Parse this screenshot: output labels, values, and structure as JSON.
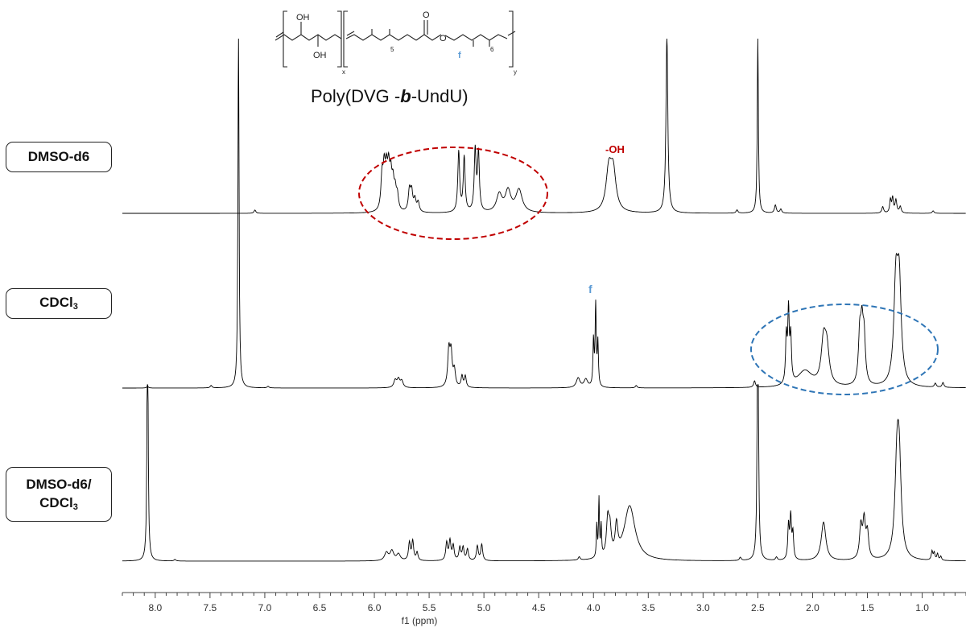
{
  "chart_data": {
    "type": "line",
    "xlabel": "f1 (ppm)",
    "xlim": [
      8.3,
      0.6
    ],
    "x_reversed": true,
    "xticks": [
      "8.0",
      "7.5",
      "7.0",
      "6.5",
      "6.0",
      "5.5",
      "5.0",
      "4.5",
      "4.0",
      "3.5",
      "3.0",
      "2.5",
      "2.0",
      "1.5",
      "1.0"
    ],
    "xtick_values": [
      8.0,
      7.5,
      7.0,
      6.5,
      6.0,
      5.5,
      5.0,
      4.5,
      4.0,
      3.5,
      3.0,
      2.5,
      2.0,
      1.5,
      1.0
    ],
    "colors": {
      "trace": "#000000",
      "red_ellipse": "#c00000",
      "blue_ellipse": "#2e75b6",
      "f_label": "#5b9bd5"
    },
    "series": [
      {
        "solvent": "DMSO-d6",
        "peaks": [
          {
            "ppm": 7.09,
            "h": 4,
            "w": 0.01
          },
          {
            "ppm": 5.93,
            "h": 40,
            "w": 0.012
          },
          {
            "ppm": 5.91,
            "h": 46,
            "w": 0.012
          },
          {
            "ppm": 5.89,
            "h": 42,
            "w": 0.012
          },
          {
            "ppm": 5.87,
            "h": 45,
            "w": 0.012
          },
          {
            "ppm": 5.85,
            "h": 38,
            "w": 0.012
          },
          {
            "ppm": 5.83,
            "h": 30,
            "w": 0.012
          },
          {
            "ppm": 5.81,
            "h": 22,
            "w": 0.012
          },
          {
            "ppm": 5.79,
            "h": 18,
            "w": 0.012
          },
          {
            "ppm": 5.68,
            "h": 26,
            "w": 0.012
          },
          {
            "ppm": 5.66,
            "h": 24,
            "w": 0.012
          },
          {
            "ppm": 5.63,
            "h": 15,
            "w": 0.012
          },
          {
            "ppm": 5.6,
            "h": 12,
            "w": 0.012
          },
          {
            "ppm": 5.23,
            "h": 75,
            "w": 0.01
          },
          {
            "ppm": 5.18,
            "h": 68,
            "w": 0.01
          },
          {
            "ppm": 5.08,
            "h": 76,
            "w": 0.01
          },
          {
            "ppm": 5.05,
            "h": 72,
            "w": 0.01
          },
          {
            "ppm": 4.86,
            "h": 22,
            "w": 0.03
          },
          {
            "ppm": 4.78,
            "h": 26,
            "w": 0.03
          },
          {
            "ppm": 4.68,
            "h": 28,
            "w": 0.035
          },
          {
            "ppm": 3.86,
            "h": 50,
            "w": 0.03
          },
          {
            "ppm": 3.82,
            "h": 48,
            "w": 0.03
          },
          {
            "ppm": 3.33,
            "h": 220,
            "w": 0.01
          },
          {
            "ppm": 2.69,
            "h": 4,
            "w": 0.01
          },
          {
            "ppm": 2.5,
            "h": 220,
            "w": 0.006
          },
          {
            "ppm": 2.34,
            "h": 10,
            "w": 0.01
          },
          {
            "ppm": 2.29,
            "h": 5,
            "w": 0.01
          },
          {
            "ppm": 1.36,
            "h": 8,
            "w": 0.01
          },
          {
            "ppm": 1.29,
            "h": 16,
            "w": 0.008
          },
          {
            "ppm": 1.27,
            "h": 18,
            "w": 0.008
          },
          {
            "ppm": 1.24,
            "h": 16,
            "w": 0.01
          },
          {
            "ppm": 1.2,
            "h": 8,
            "w": 0.01
          },
          {
            "ppm": 0.9,
            "h": 3,
            "w": 0.01
          }
        ]
      },
      {
        "solvent": "CDCl3",
        "peaks": [
          {
            "ppm": 8.07,
            "h": 2,
            "w": 0.01
          },
          {
            "ppm": 7.49,
            "h": 3,
            "w": 0.01
          },
          {
            "ppm": 7.24,
            "h": 435,
            "w": 0.006
          },
          {
            "ppm": 6.97,
            "h": 2,
            "w": 0.01
          },
          {
            "ppm": 5.81,
            "h": 9,
            "w": 0.015
          },
          {
            "ppm": 5.78,
            "h": 10,
            "w": 0.015
          },
          {
            "ppm": 5.75,
            "h": 8,
            "w": 0.015
          },
          {
            "ppm": 5.32,
            "h": 44,
            "w": 0.012
          },
          {
            "ppm": 5.3,
            "h": 40,
            "w": 0.012
          },
          {
            "ppm": 5.27,
            "h": 20,
            "w": 0.012
          },
          {
            "ppm": 5.2,
            "h": 14,
            "w": 0.01
          },
          {
            "ppm": 5.17,
            "h": 14,
            "w": 0.01
          },
          {
            "ppm": 4.14,
            "h": 12,
            "w": 0.02
          },
          {
            "ppm": 4.07,
            "h": 10,
            "w": 0.02
          },
          {
            "ppm": 4.0,
            "h": 56,
            "w": 0.006
          },
          {
            "ppm": 3.98,
            "h": 100,
            "w": 0.006
          },
          {
            "ppm": 3.96,
            "h": 54,
            "w": 0.006
          },
          {
            "ppm": 3.61,
            "h": 3,
            "w": 0.01
          },
          {
            "ppm": 2.53,
            "h": 8,
            "w": 0.01
          },
          {
            "ppm": 2.24,
            "h": 58,
            "w": 0.008
          },
          {
            "ppm": 2.22,
            "h": 88,
            "w": 0.008
          },
          {
            "ppm": 2.2,
            "h": 56,
            "w": 0.008
          },
          {
            "ppm": 2.07,
            "h": 20,
            "w": 0.08
          },
          {
            "ppm": 1.9,
            "h": 52,
            "w": 0.025
          },
          {
            "ppm": 1.87,
            "h": 42,
            "w": 0.025
          },
          {
            "ppm": 1.57,
            "h": 58,
            "w": 0.014
          },
          {
            "ppm": 1.55,
            "h": 64,
            "w": 0.014
          },
          {
            "ppm": 1.53,
            "h": 54,
            "w": 0.014
          },
          {
            "ppm": 1.24,
            "h": 120,
            "w": 0.022
          },
          {
            "ppm": 1.21,
            "h": 120,
            "w": 0.022
          },
          {
            "ppm": 0.88,
            "h": 5,
            "w": 0.01
          },
          {
            "ppm": 0.81,
            "h": 6,
            "w": 0.01
          }
        ]
      },
      {
        "solvent": "DMSO-d6/CDCl3",
        "peaks": [
          {
            "ppm": 8.07,
            "h": 332,
            "w": 0.006
          },
          {
            "ppm": 7.82,
            "h": 2,
            "w": 0.01
          },
          {
            "ppm": 5.89,
            "h": 10,
            "w": 0.02
          },
          {
            "ppm": 5.84,
            "h": 12,
            "w": 0.02
          },
          {
            "ppm": 5.78,
            "h": 8,
            "w": 0.02
          },
          {
            "ppm": 5.68,
            "h": 22,
            "w": 0.01
          },
          {
            "ppm": 5.65,
            "h": 24,
            "w": 0.01
          },
          {
            "ppm": 5.61,
            "h": 10,
            "w": 0.01
          },
          {
            "ppm": 5.34,
            "h": 22,
            "w": 0.01
          },
          {
            "ppm": 5.31,
            "h": 24,
            "w": 0.01
          },
          {
            "ppm": 5.28,
            "h": 18,
            "w": 0.01
          },
          {
            "ppm": 5.22,
            "h": 16,
            "w": 0.01
          },
          {
            "ppm": 5.19,
            "h": 16,
            "w": 0.01
          },
          {
            "ppm": 5.15,
            "h": 14,
            "w": 0.01
          },
          {
            "ppm": 5.06,
            "h": 18,
            "w": 0.01
          },
          {
            "ppm": 5.02,
            "h": 20,
            "w": 0.01
          },
          {
            "ppm": 4.13,
            "h": 4,
            "w": 0.01
          },
          {
            "ppm": 3.97,
            "h": 40,
            "w": 0.005
          },
          {
            "ppm": 3.95,
            "h": 72,
            "w": 0.005
          },
          {
            "ppm": 3.93,
            "h": 38,
            "w": 0.005
          },
          {
            "ppm": 3.87,
            "h": 44,
            "w": 0.014
          },
          {
            "ppm": 3.85,
            "h": 32,
            "w": 0.014
          },
          {
            "ppm": 3.79,
            "h": 36,
            "w": 0.014
          },
          {
            "ppm": 3.67,
            "h": 68,
            "w": 0.06
          },
          {
            "ppm": 2.66,
            "h": 4,
            "w": 0.01
          },
          {
            "ppm": 2.5,
            "h": 420,
            "w": 0.006
          },
          {
            "ppm": 2.33,
            "h": 4,
            "w": 0.01
          },
          {
            "ppm": 2.22,
            "h": 42,
            "w": 0.008
          },
          {
            "ppm": 2.2,
            "h": 52,
            "w": 0.008
          },
          {
            "ppm": 2.18,
            "h": 32,
            "w": 0.008
          },
          {
            "ppm": 1.9,
            "h": 48,
            "w": 0.025
          },
          {
            "ppm": 1.56,
            "h": 40,
            "w": 0.014
          },
          {
            "ppm": 1.53,
            "h": 46,
            "w": 0.014
          },
          {
            "ppm": 1.5,
            "h": 32,
            "w": 0.014
          },
          {
            "ppm": 1.23,
            "h": 106,
            "w": 0.022
          },
          {
            "ppm": 1.21,
            "h": 106,
            "w": 0.022
          },
          {
            "ppm": 0.91,
            "h": 11,
            "w": 0.008
          },
          {
            "ppm": 0.89,
            "h": 9,
            "w": 0.008
          },
          {
            "ppm": 0.86,
            "h": 8,
            "w": 0.008
          },
          {
            "ppm": 0.83,
            "h": 5,
            "w": 0.008
          }
        ]
      }
    ]
  },
  "labels": {
    "solvent1": "DMSO-d6",
    "solvent2_main": "CDCl",
    "solvent2_sub": "3",
    "solvent3_line1": "DMSO-d6/",
    "solvent3_main": "CDCl",
    "solvent3_sub": "3",
    "oh_annotation": "-OH",
    "f_annotation": "f",
    "polymer_name_prefix": "Poly(DVG -",
    "polymer_name_italic": "b",
    "polymer_name_suffix": "-UndU)",
    "structure": {
      "oh_top": "OH",
      "oh_bottom": "OH",
      "x": "x",
      "y": "y",
      "sub5": "5",
      "sub6": "6",
      "o_carbonyl": "O",
      "o_ester": "O",
      "f_marker": "f"
    }
  }
}
